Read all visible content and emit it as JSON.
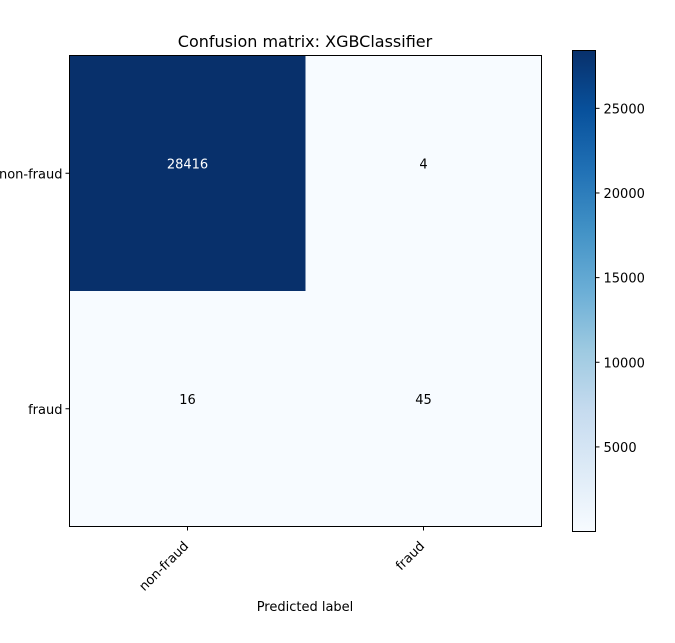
{
  "chart_data": {
    "type": "heatmap",
    "title": "Confusion matrix: XGBClassifier",
    "xlabel": "Predicted label",
    "ylabel": "",
    "x_categories": [
      "non-fraud",
      "fraud"
    ],
    "y_categories": [
      "non-fraud",
      "fraud"
    ],
    "values": [
      [
        28416,
        4
      ],
      [
        16,
        45
      ]
    ],
    "colormap": "Blues",
    "colorbar": {
      "range": [
        4,
        28416
      ],
      "ticks": [
        5000,
        10000,
        15000,
        20000,
        25000
      ],
      "tick_labels": [
        "5000",
        "10000",
        "15000",
        "20000",
        "25000"
      ]
    },
    "colors": {
      "low": "#f7fbff",
      "high": "#08306b",
      "text_on_dark": "#ffffff",
      "text_on_light": "#000000"
    }
  }
}
